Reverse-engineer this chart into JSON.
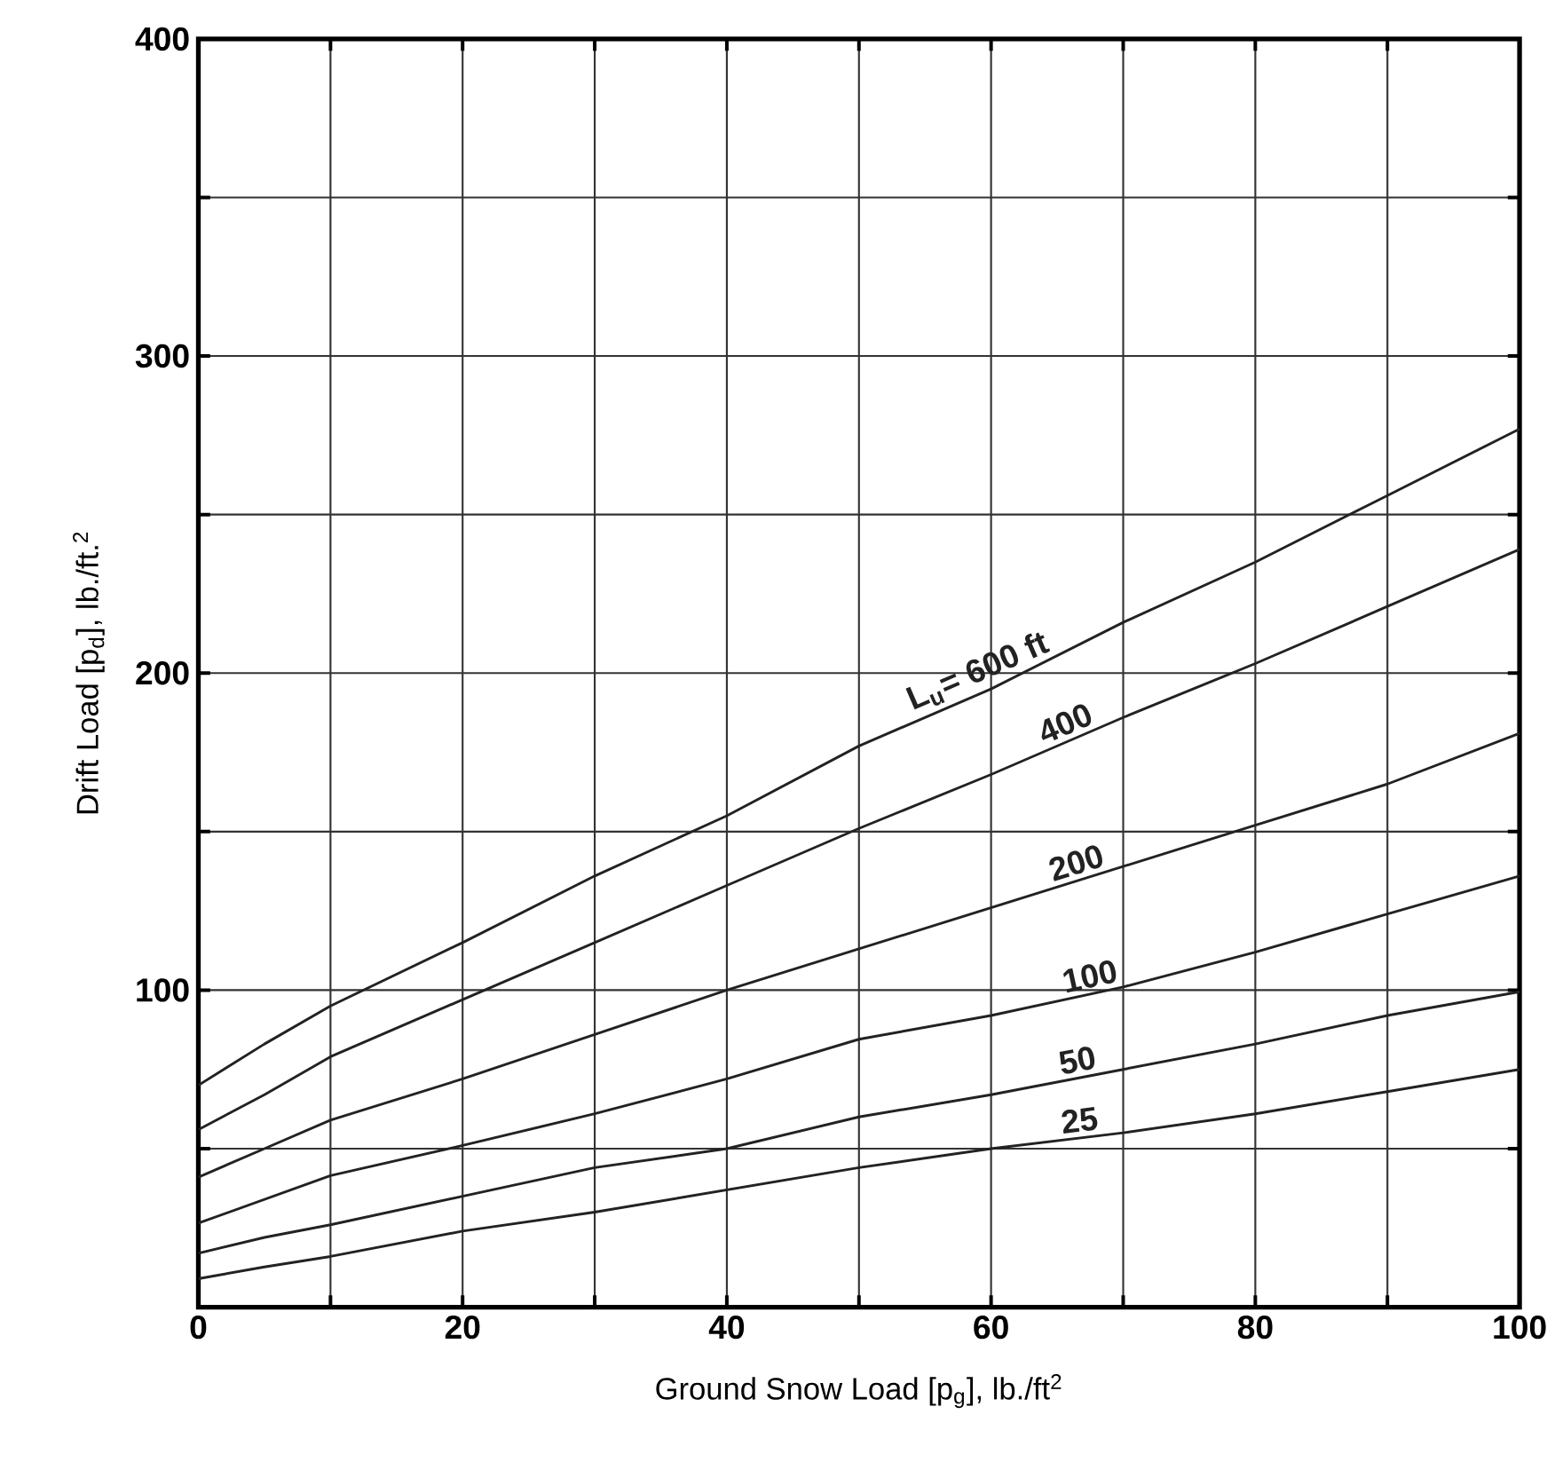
{
  "chart_data": {
    "type": "line",
    "xlabel": "Ground Snow Load [p$_{g}$], lb./ft$^{2}$",
    "ylabel": "Drift Load [p$_{d}$], lb./ft.$^{2}$",
    "x": [
      0,
      5,
      10,
      20,
      30,
      40,
      50,
      60,
      70,
      80,
      90,
      100
    ],
    "series": [
      {
        "name": "L$_{u}$= 600 ft",
        "color": "#222222",
        "values": [
          70,
          83,
          95,
          115,
          136,
          155,
          177,
          195,
          216,
          235,
          256,
          277
        ]
      },
      {
        "name": "400",
        "color": "#222222",
        "values": [
          56,
          67,
          79,
          97,
          115,
          133,
          151,
          168,
          186,
          203,
          221,
          239
        ]
      },
      {
        "name": "200",
        "color": "#222222",
        "values": [
          41,
          50,
          59,
          72,
          86,
          100,
          113,
          126,
          139,
          152,
          165,
          181
        ]
      },
      {
        "name": "100",
        "color": "#222222",
        "values": [
          26.5,
          34,
          41.5,
          51,
          61,
          72,
          84.5,
          92,
          101,
          112,
          124,
          136
        ]
      },
      {
        "name": "50",
        "color": "#222222",
        "values": [
          17,
          22,
          26,
          35,
          44,
          50,
          60,
          67,
          75,
          83,
          92,
          99.5
        ]
      },
      {
        "name": "25",
        "color": "#222222",
        "values": [
          9,
          12.7,
          16,
          24,
          30,
          37,
          44,
          50,
          55,
          61,
          68,
          75
        ]
      }
    ],
    "xlim": [
      0,
      100
    ],
    "ylim": [
      0,
      400
    ],
    "xticks": [
      0,
      {
        "value": 10,
        "label": null
      },
      20,
      {
        "value": 30,
        "label": null
      },
      40,
      {
        "value": 50,
        "label": null
      },
      60,
      {
        "value": 70,
        "label": null
      },
      80,
      {
        "value": 90,
        "label": null
      },
      100
    ],
    "yticks": [
      {
        "value": 50,
        "label": null
      },
      100,
      {
        "value": 150,
        "label": null
      },
      200,
      {
        "value": 250,
        "label": null
      },
      300,
      {
        "value": 350,
        "label": null
      },
      400
    ],
    "grid": true,
    "marker": "none",
    "line_style": "solid",
    "legend": false
  }
}
